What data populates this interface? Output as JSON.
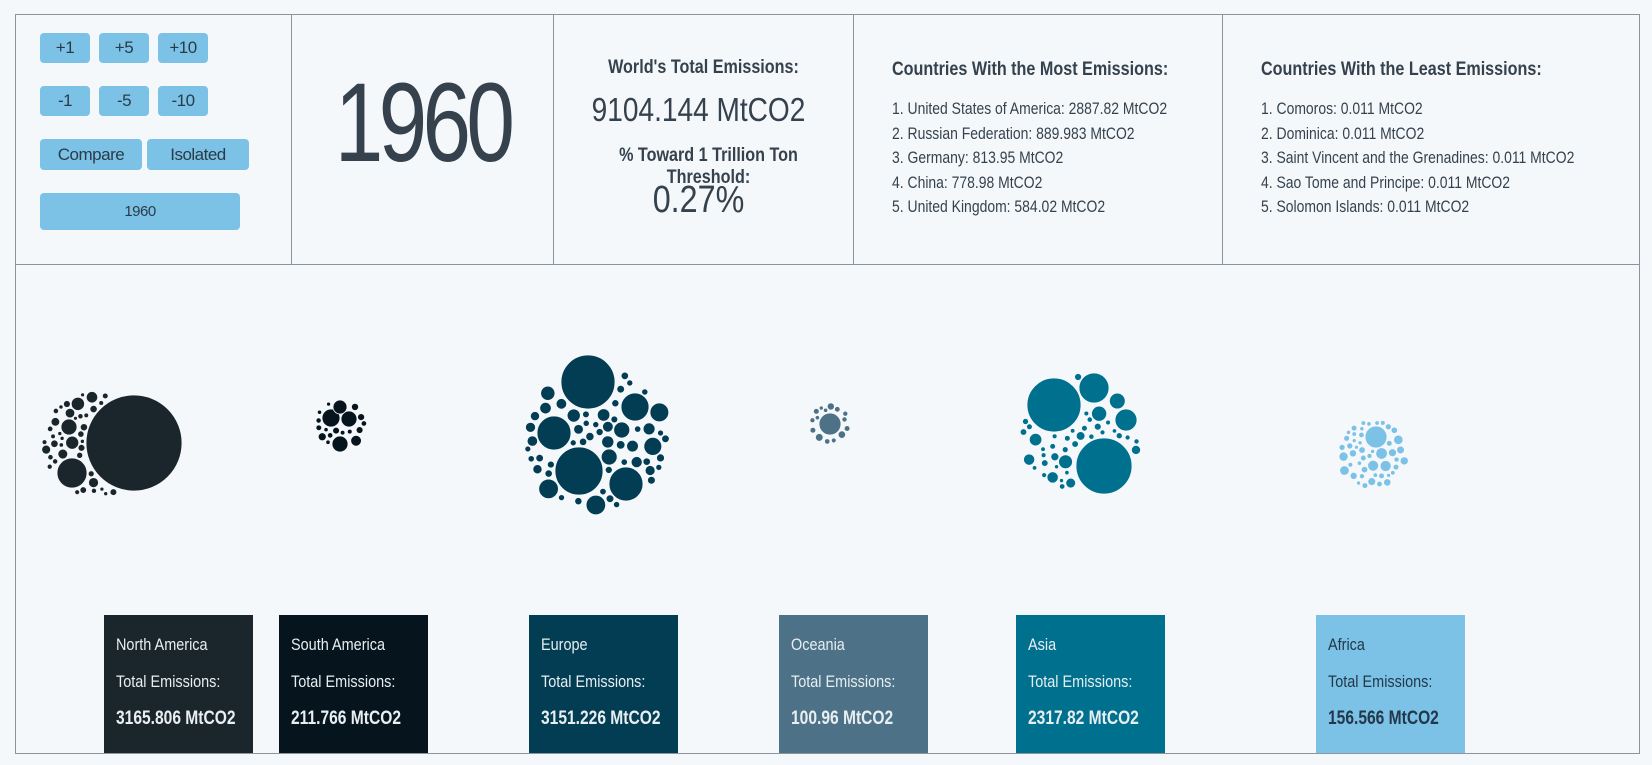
{
  "controls": {
    "plus_1": "+1",
    "plus_5": "+5",
    "plus_10": "+10",
    "minus_1": "-1",
    "minus_5": "-5",
    "minus_10": "-10",
    "compare": "Compare",
    "isolated": "Isolated",
    "year_button": "1960"
  },
  "year": "1960",
  "world": {
    "title": "World's Total Emissions:",
    "value": "9104.144 MtCO2",
    "threshold_title": "% Toward 1 Trillion Ton Threshold:",
    "threshold_value": "0.27%"
  },
  "most": {
    "title": "Countries With the Most Emissions:",
    "items": [
      "1. United States of America: 2887.82 MtCO2",
      "2. Russian Federation: 889.983 MtCO2",
      "3. Germany: 813.95 MtCO2",
      "4. China: 778.98 MtCO2",
      "5. United Kingdom: 584.02 MtCO2"
    ]
  },
  "least": {
    "title": "Countries With the Least Emissions:",
    "items": [
      "1. Comoros: 0.011 MtCO2",
      "2. Dominica: 0.011 MtCO2",
      "3. Saint Vincent and the Grenadines: 0.011 MtCO2",
      "4. Sao Tome and Principe: 0.011 MtCO2",
      "5. Solomon Islands: 0.011 MtCO2"
    ]
  },
  "total_label": "Total Emissions:",
  "continents": [
    {
      "name": "North America",
      "total": "3165.806 MtCO2",
      "color": "#1b262c"
    },
    {
      "name": "South America",
      "total": "211.766 MtCO2",
      "color": "#06141d"
    },
    {
      "name": "Europe",
      "total": "3151.226 MtCO2",
      "color": "#023d53"
    },
    {
      "name": "Oceania",
      "total": "100.96 MtCO2",
      "color": "#4d7287"
    },
    {
      "name": "Asia",
      "total": "2317.82 MtCO2",
      "color": "#00708f"
    },
    {
      "name": "Africa",
      "total": "156.566 MtCO2",
      "color": "#7bc2e6"
    }
  ],
  "accent_color": "#7bc2e6"
}
